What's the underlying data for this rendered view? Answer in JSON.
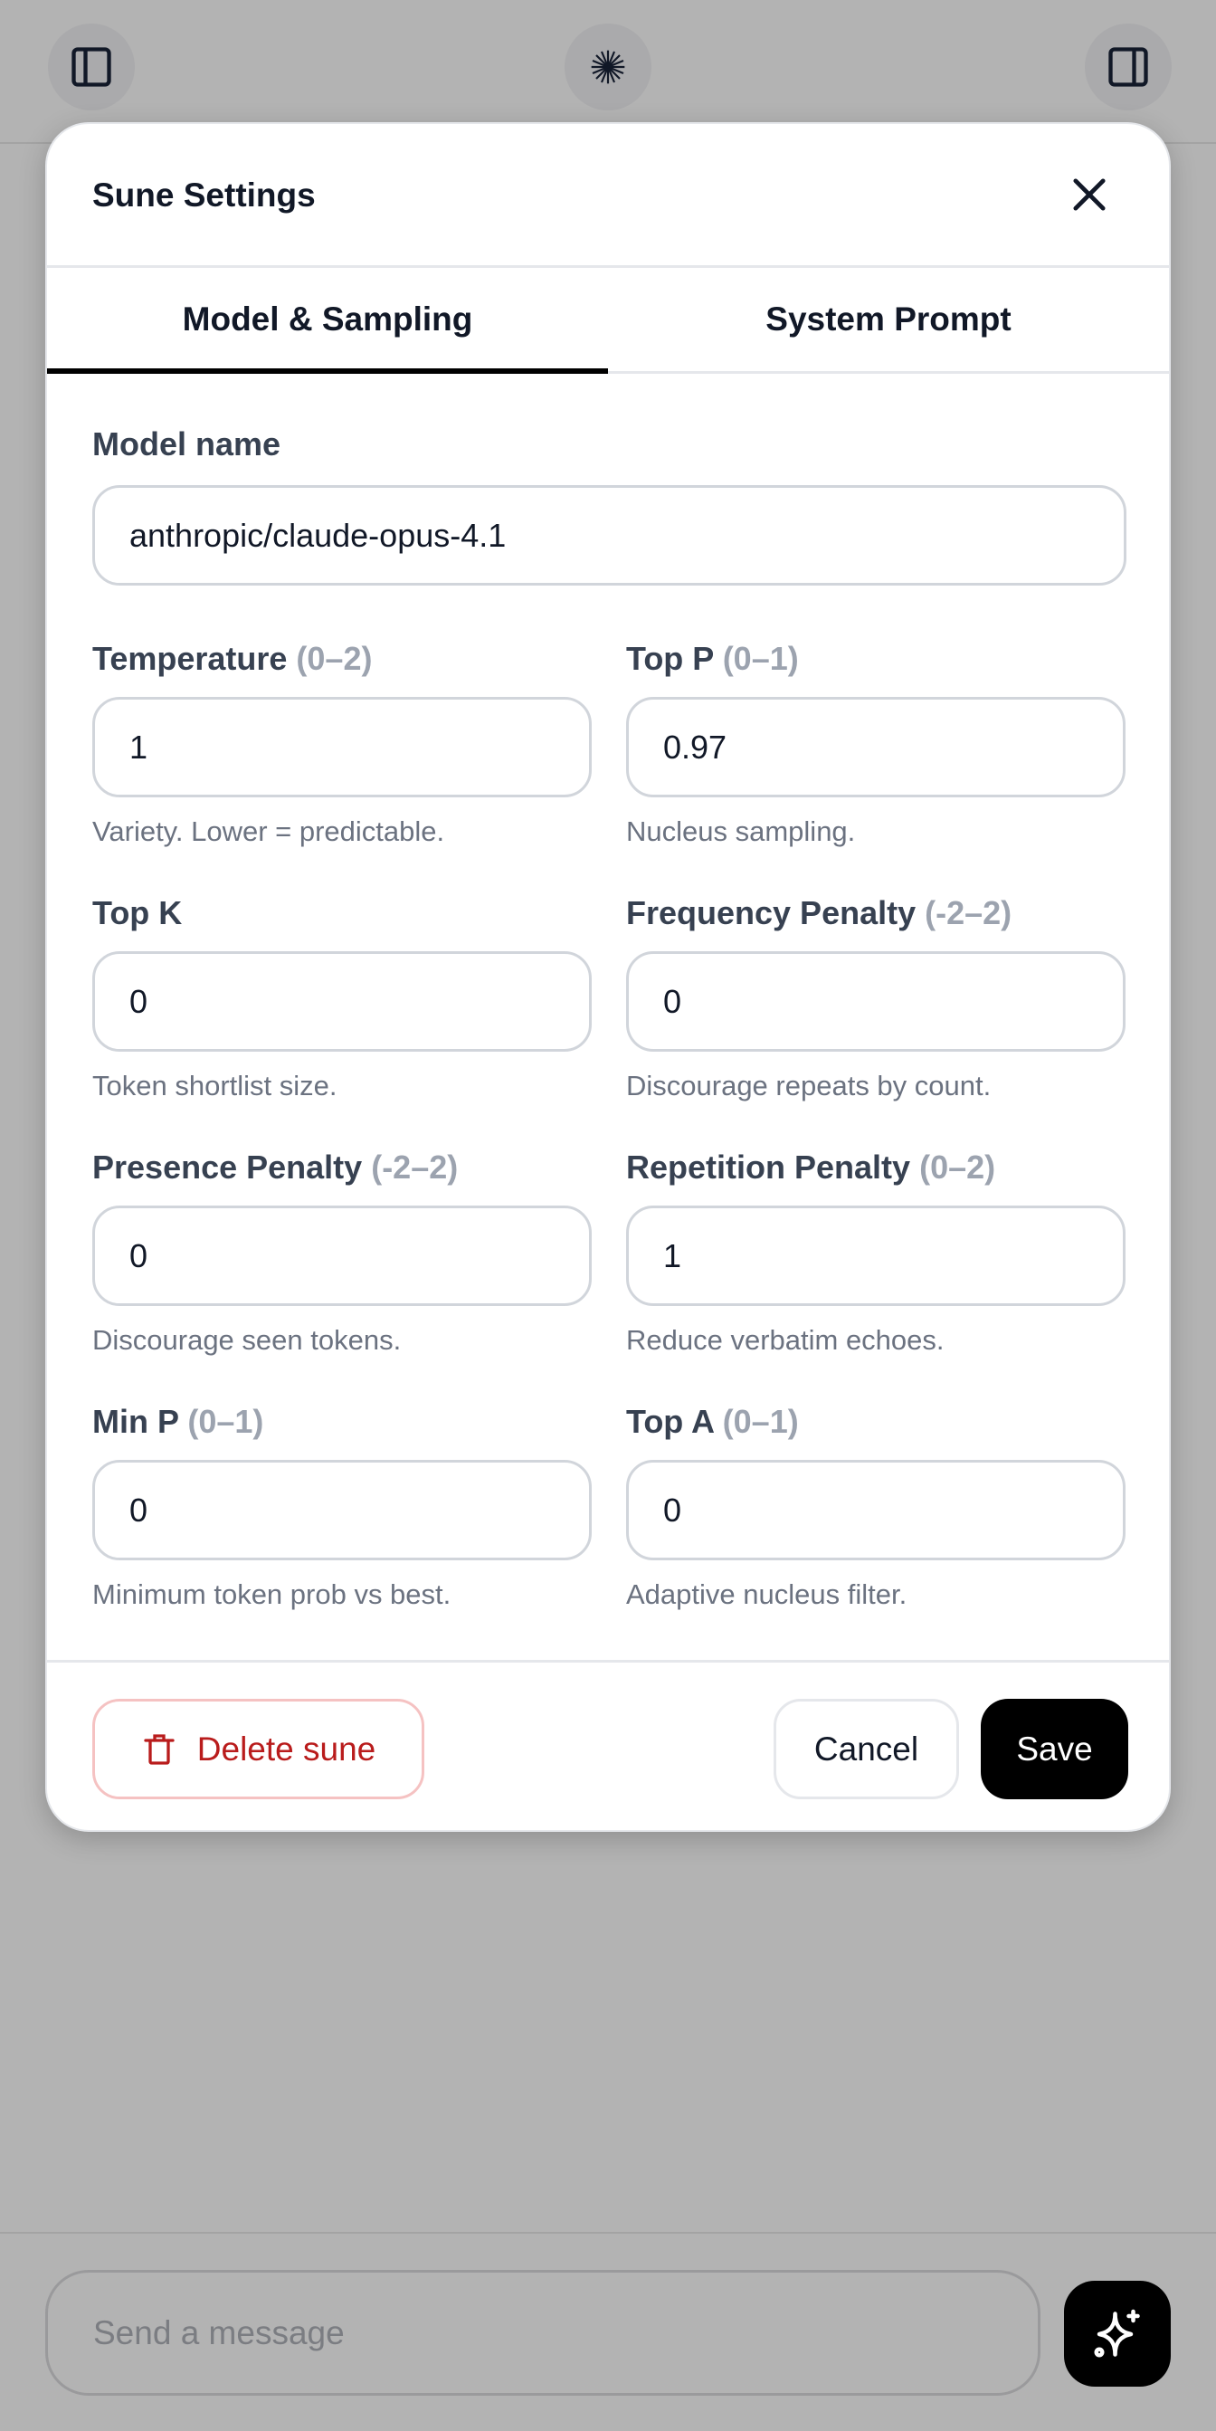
{
  "topbar": {
    "left_icon": "sidebar-left-icon",
    "center_icon": "starburst-icon",
    "right_icon": "sidebar-right-icon"
  },
  "modal": {
    "title": "Sune Settings",
    "close_icon": "close-icon",
    "tabs": [
      {
        "label": "Model & Sampling",
        "active": true
      },
      {
        "label": "System Prompt",
        "active": false
      }
    ],
    "model_name": {
      "label": "Model name",
      "value": "anthropic/claude-opus-4.1"
    },
    "fields": [
      {
        "label": "Temperature",
        "range": "(0–2)",
        "value": "1",
        "hint": "Variety. Lower = predictable."
      },
      {
        "label": "Top P",
        "range": "(0–1)",
        "value": "0.97",
        "hint": "Nucleus sampling."
      },
      {
        "label": "Top K",
        "range": "",
        "value": "0",
        "hint": "Token shortlist size."
      },
      {
        "label": "Frequency Penalty",
        "range": "(-2–2)",
        "value": "0",
        "hint": "Discourage repeats by count."
      },
      {
        "label": "Presence Penalty",
        "range": "(-2–2)",
        "value": "0",
        "hint": "Discourage seen tokens."
      },
      {
        "label": "Repetition Penalty",
        "range": "(0–2)",
        "value": "1",
        "hint": "Reduce verbatim echoes."
      },
      {
        "label": "Min P",
        "range": "(0–1)",
        "value": "0",
        "hint": "Minimum token prob vs best."
      },
      {
        "label": "Top A",
        "range": "(0–1)",
        "value": "0",
        "hint": "Adaptive nucleus filter."
      }
    ],
    "footer": {
      "delete_label": "Delete sune",
      "delete_icon": "trash-icon",
      "cancel_label": "Cancel",
      "save_label": "Save"
    }
  },
  "composer": {
    "placeholder": "Send a message",
    "send_icon": "sparkles-icon"
  },
  "colors": {
    "danger": "#b91c1c",
    "primary": "#000000",
    "overlay": "#b3b3b3"
  }
}
